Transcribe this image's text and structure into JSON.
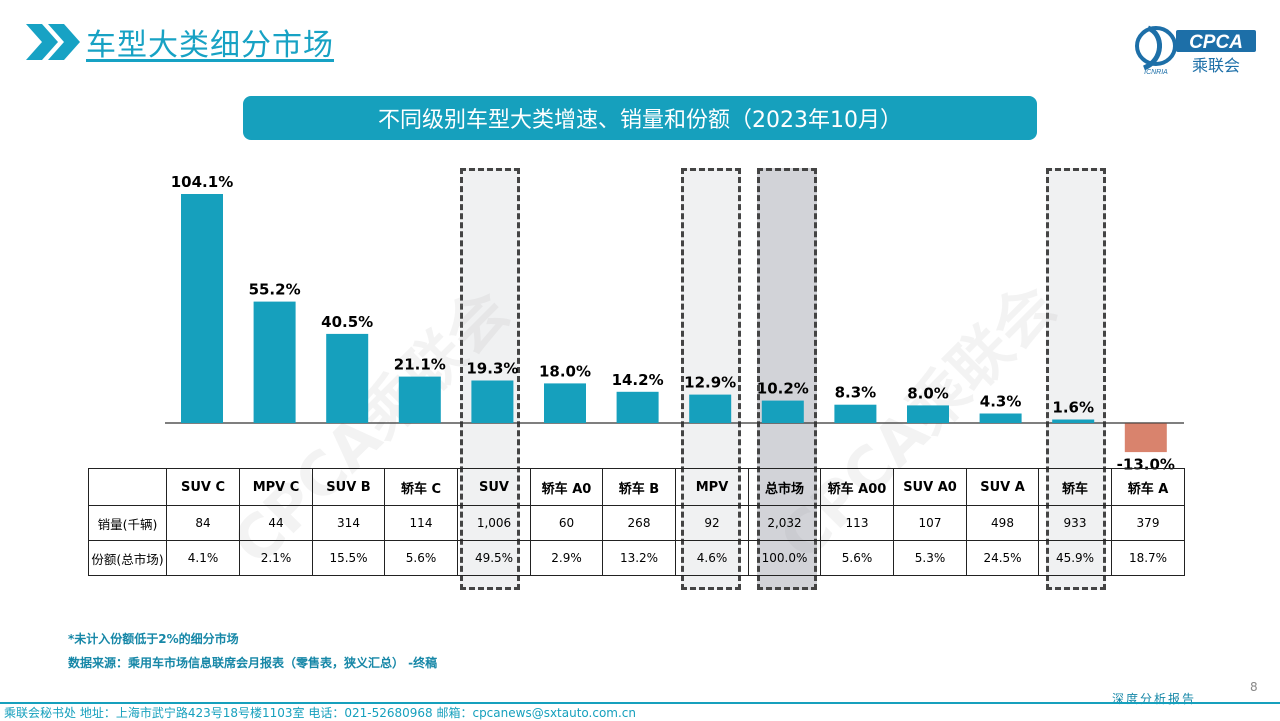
{
  "page_title": "车型大类细分市场",
  "logo": {
    "brand": "CPCA",
    "brand_cn": "乘联会",
    "sub": "ICNRIA"
  },
  "banner": "不同级别车型大类增速、销量和份额（2023年10月）",
  "watermark": "CPCA乘联会",
  "chart_data": {
    "type": "bar",
    "categories": [
      "SUV C",
      "MPV C",
      "SUV B",
      "轿车 C",
      "SUV",
      "轿车 A0",
      "轿车 B",
      "MPV",
      "总市场",
      "轿车 A00",
      "SUV A0",
      "SUV A",
      "轿车",
      "轿车 A"
    ],
    "values": [
      104.1,
      55.2,
      40.5,
      21.1,
      19.3,
      18.0,
      14.2,
      12.9,
      10.2,
      8.3,
      8.0,
      4.3,
      1.6,
      -13.0
    ],
    "labels": [
      "104.1%",
      "55.2%",
      "40.5%",
      "21.1%",
      "19.3%",
      "18.0%",
      "14.2%",
      "12.9%",
      "10.2%",
      "8.3%",
      "8.0%",
      "4.3%",
      "1.6%",
      "-13.0%"
    ],
    "unit": "%",
    "colors": {
      "positive": "#16a0bd",
      "negative": "#d9836d"
    },
    "highlighted": [
      "SUV",
      "MPV",
      "总市场",
      "轿车"
    ],
    "grid": false,
    "legend": "none"
  },
  "table": {
    "row_labels": [
      "销量(千辆)",
      "份额(总市场)"
    ],
    "sales": [
      "84",
      "44",
      "314",
      "114",
      "1,006",
      "60",
      "268",
      "92",
      "2,032",
      "113",
      "107",
      "498",
      "933",
      "379"
    ],
    "share": [
      "4.1%",
      "2.1%",
      "15.5%",
      "5.6%",
      "49.5%",
      "2.9%",
      "13.2%",
      "4.6%",
      "100.0%",
      "5.6%",
      "5.3%",
      "24.5%",
      "45.9%",
      "18.7%"
    ]
  },
  "notes": {
    "note1": "*未计入份额低于2%的细分市场",
    "note2": "数据来源：乘用车市场信息联席会月报表（零售表，狭义汇总）  -终稿"
  },
  "page_number": "8",
  "footer": {
    "text": "乘联会秘书处    地址：上海市武宁路423号18号楼1103室    电话：021-52680968    邮箱：cpcanews@sxtauto.com.cn",
    "report": "深度分析报告"
  }
}
